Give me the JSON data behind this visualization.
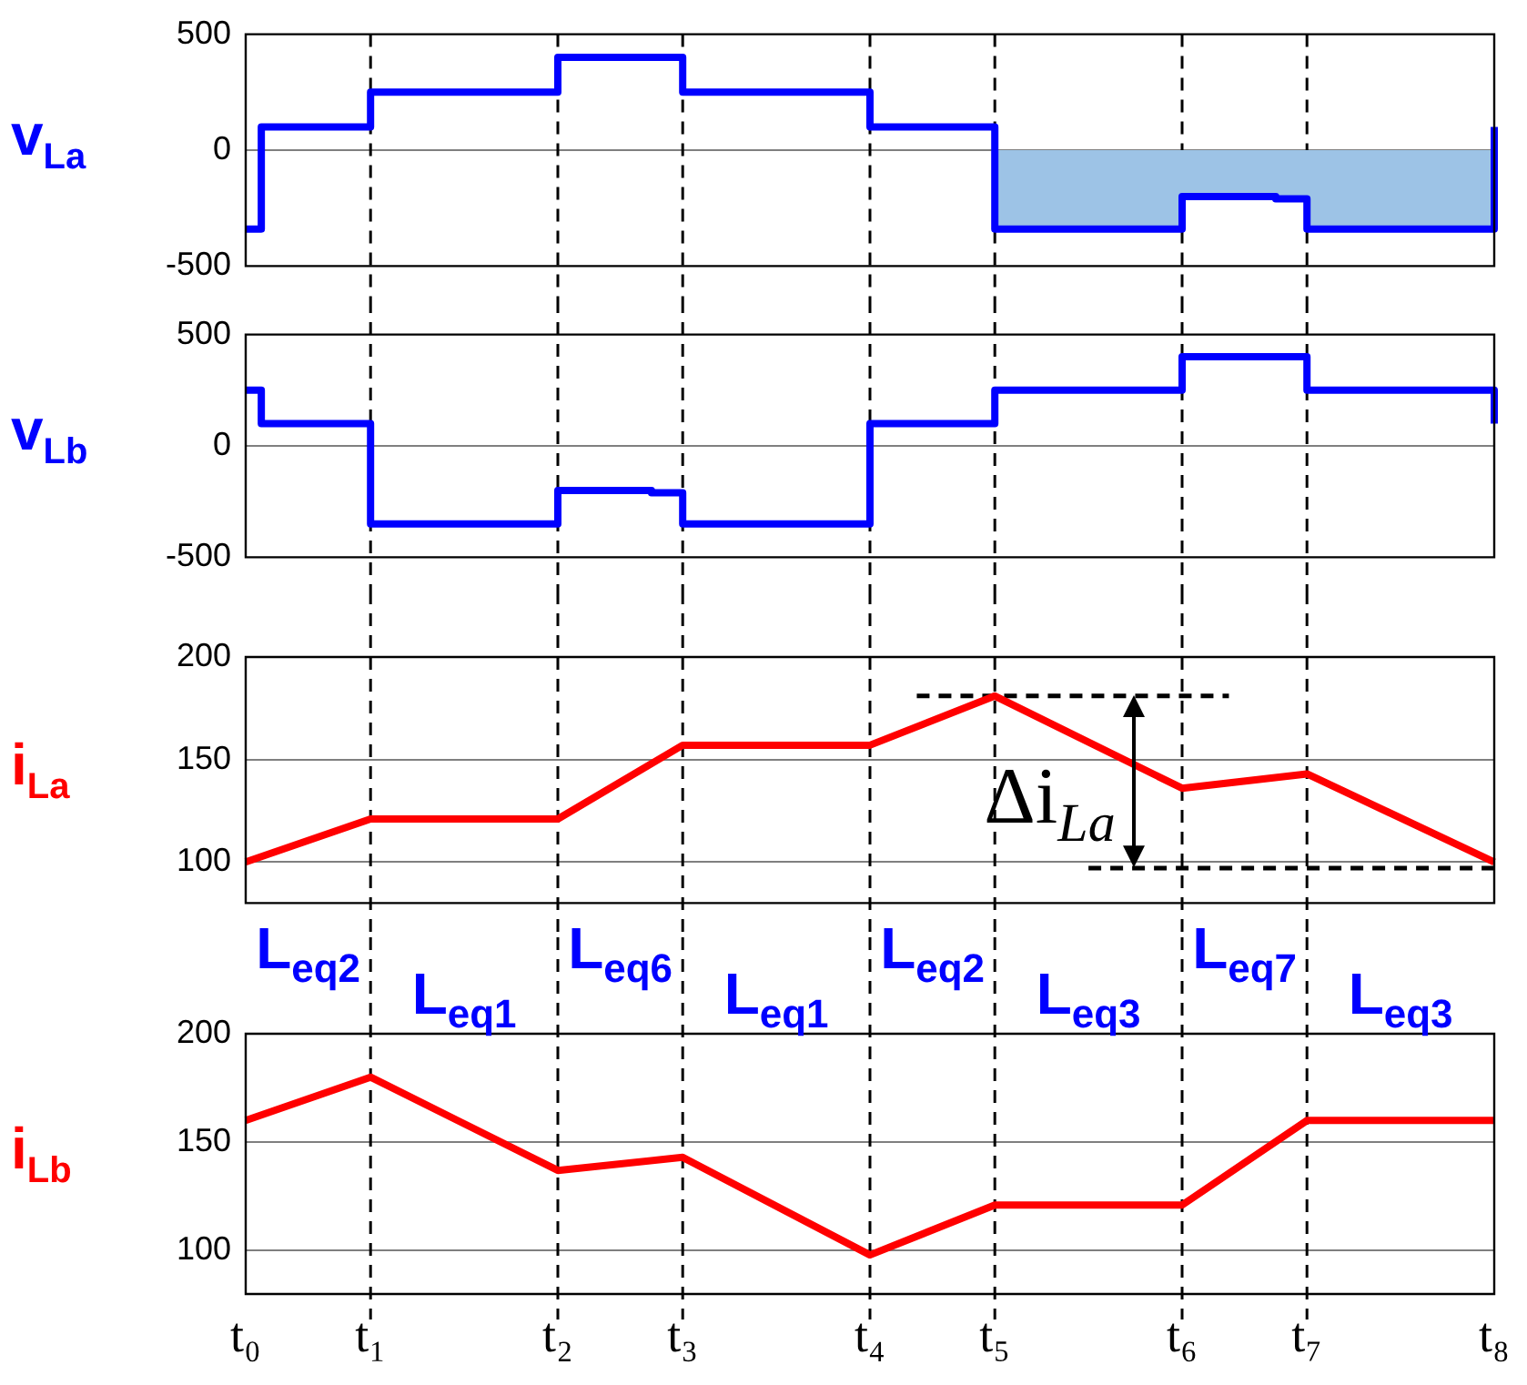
{
  "chart_data": [
    {
      "type": "step",
      "ylabel": "v$_{La}$",
      "categories": [
        "t₀",
        null,
        null,
        null,
        null,
        null,
        null,
        null,
        "t₁",
        null,
        null,
        null,
        null,
        null,
        null,
        null,
        null,
        null,
        null,
        null,
        "t₂",
        null,
        null,
        null,
        null,
        null,
        null,
        null,
        "t₃",
        null,
        null,
        null,
        null,
        null,
        null,
        null,
        null,
        null,
        null,
        null,
        "t₄",
        null,
        null,
        null,
        null,
        null,
        null,
        null,
        "t₅",
        null,
        null,
        null,
        null,
        null,
        null,
        null,
        null,
        null,
        null,
        null,
        "t₆",
        null,
        null,
        null,
        null,
        null,
        null,
        null,
        "t₇",
        null,
        null,
        null,
        null,
        null,
        null,
        null,
        null,
        null,
        null,
        null,
        "t₈"
      ],
      "ylim": [
        -500,
        500
      ],
      "yticks": [
        -500,
        0,
        500
      ],
      "tick_labels": "y",
      "marker": "none",
      "legend": false,
      "ref_lines": [
        {
          "axis": "y",
          "value": 0,
          "color": "#7f7f7f",
          "line_style": "solid"
        },
        {
          "axis": "x",
          "value": "t₁",
          "color": "#000000",
          "line_style": "dashed"
        },
        {
          "axis": "x",
          "value": "t₂",
          "color": "#000000",
          "line_style": "dashed"
        },
        {
          "axis": "x",
          "value": "t₃",
          "color": "#000000",
          "line_style": "dashed"
        },
        {
          "axis": "x",
          "value": "t₄",
          "color": "#000000",
          "line_style": "dashed"
        },
        {
          "axis": "x",
          "value": "t₅",
          "color": "#000000",
          "line_style": "dashed"
        },
        {
          "axis": "x",
          "value": "t₆",
          "color": "#000000",
          "line_style": "dashed"
        },
        {
          "axis": "x",
          "value": "t₇",
          "color": "#000000",
          "line_style": "dashed"
        }
      ],
      "series": [
        {
          "type": "area",
          "color": "#9dc3e6",
          "values": [
            null,
            null,
            null,
            null,
            null,
            null,
            null,
            null,
            null,
            null,
            null,
            null,
            null,
            null,
            null,
            null,
            null,
            null,
            null,
            null,
            null,
            null,
            null,
            null,
            null,
            null,
            null,
            null,
            null,
            null,
            null,
            null,
            null,
            null,
            null,
            null,
            null,
            null,
            null,
            null,
            null,
            null,
            null,
            null,
            null,
            null,
            null,
            null,
            -340,
            null,
            null,
            null,
            null,
            null,
            null,
            null,
            null,
            null,
            null,
            null,
            -200,
            null,
            null,
            null,
            null,
            null,
            -210,
            null,
            -340,
            null,
            null,
            null,
            null,
            null,
            null,
            null,
            null,
            null,
            null,
            null,
            -340
          ]
        },
        {
          "color": "#0000ff",
          "values": [
            -340,
            100,
            null,
            null,
            null,
            null,
            null,
            null,
            250,
            null,
            null,
            null,
            null,
            null,
            null,
            null,
            null,
            null,
            null,
            null,
            400,
            null,
            null,
            null,
            null,
            null,
            null,
            null,
            250,
            null,
            null,
            null,
            null,
            null,
            null,
            null,
            null,
            null,
            null,
            null,
            100,
            null,
            null,
            null,
            null,
            null,
            null,
            null,
            -340,
            null,
            null,
            null,
            null,
            null,
            null,
            null,
            null,
            null,
            null,
            null,
            -200,
            null,
            null,
            null,
            null,
            null,
            -210,
            null,
            -340,
            null,
            null,
            null,
            null,
            null,
            null,
            null,
            null,
            null,
            null,
            null,
            100
          ]
        }
      ]
    },
    {
      "type": "step",
      "ylabel": "v$_{Lb}$",
      "categories": [
        "t₀",
        null,
        null,
        null,
        null,
        null,
        null,
        null,
        "t₁",
        null,
        null,
        null,
        null,
        null,
        null,
        null,
        null,
        null,
        null,
        null,
        "t₂",
        null,
        null,
        null,
        null,
        null,
        null,
        null,
        "t₃",
        null,
        null,
        null,
        null,
        null,
        null,
        null,
        null,
        null,
        null,
        null,
        "t₄",
        null,
        null,
        null,
        null,
        null,
        null,
        null,
        "t₅",
        null,
        null,
        null,
        null,
        null,
        null,
        null,
        null,
        null,
        null,
        null,
        "t₆",
        null,
        null,
        null,
        null,
        null,
        null,
        null,
        "t₇",
        null,
        null,
        null,
        null,
        null,
        null,
        null,
        null,
        null,
        null,
        null,
        "t₈"
      ],
      "ylim": [
        -500,
        500
      ],
      "yticks": [
        -500,
        0,
        500
      ],
      "tick_labels": "y",
      "marker": "none",
      "legend": false,
      "ref_lines": [
        {
          "axis": "y",
          "value": 0,
          "color": "#7f7f7f",
          "line_style": "solid"
        },
        {
          "axis": "x",
          "value": "t₁",
          "color": "#000000",
          "line_style": "dashed"
        },
        {
          "axis": "x",
          "value": "t₂",
          "color": "#000000",
          "line_style": "dashed"
        },
        {
          "axis": "x",
          "value": "t₃",
          "color": "#000000",
          "line_style": "dashed"
        },
        {
          "axis": "x",
          "value": "t₄",
          "color": "#000000",
          "line_style": "dashed"
        },
        {
          "axis": "x",
          "value": "t₅",
          "color": "#000000",
          "line_style": "dashed"
        },
        {
          "axis": "x",
          "value": "t₆",
          "color": "#000000",
          "line_style": "dashed"
        },
        {
          "axis": "x",
          "value": "t₇",
          "color": "#000000",
          "line_style": "dashed"
        }
      ],
      "series": [
        {
          "color": "#0000ff",
          "values": [
            250,
            100,
            null,
            null,
            null,
            null,
            null,
            null,
            -350,
            null,
            null,
            null,
            null,
            null,
            null,
            null,
            null,
            null,
            null,
            null,
            -200,
            null,
            null,
            null,
            null,
            null,
            -210,
            null,
            -350,
            null,
            null,
            null,
            null,
            null,
            null,
            null,
            null,
            null,
            null,
            null,
            100,
            null,
            null,
            null,
            null,
            null,
            null,
            null,
            250,
            null,
            null,
            null,
            null,
            null,
            null,
            null,
            null,
            null,
            null,
            null,
            400,
            null,
            null,
            null,
            null,
            null,
            null,
            null,
            250,
            null,
            null,
            null,
            null,
            null,
            null,
            null,
            null,
            null,
            null,
            null,
            100
          ]
        }
      ]
    },
    {
      "type": "line",
      "ylabel": "i$_{La}$",
      "categories": [
        "t₀",
        null,
        null,
        null,
        null,
        null,
        null,
        null,
        "t₁",
        null,
        null,
        null,
        null,
        null,
        null,
        null,
        null,
        null,
        null,
        null,
        "t₂",
        null,
        null,
        null,
        null,
        null,
        null,
        null,
        "t₃",
        null,
        null,
        null,
        null,
        null,
        null,
        null,
        null,
        null,
        null,
        null,
        "t₄",
        null,
        null,
        null,
        null,
        null,
        null,
        null,
        "t₅",
        null,
        null,
        null,
        null,
        null,
        null,
        null,
        null,
        null,
        null,
        null,
        "t₆",
        null,
        null,
        null,
        null,
        null,
        null,
        null,
        "t₇",
        null,
        null,
        null,
        null,
        null,
        null,
        null,
        null,
        null,
        null,
        null,
        "t₈"
      ],
      "ylim": [
        80,
        200
      ],
      "yticks": [
        100,
        150,
        200
      ],
      "grid": "y",
      "tick_labels": "y",
      "marker": "none",
      "legend": false,
      "ref_lines": [
        {
          "axis": "x",
          "value": "t₁",
          "color": "#000000",
          "line_style": "dashed"
        },
        {
          "axis": "x",
          "value": "t₂",
          "color": "#000000",
          "line_style": "dashed"
        },
        {
          "axis": "x",
          "value": "t₃",
          "color": "#000000",
          "line_style": "dashed"
        },
        {
          "axis": "x",
          "value": "t₄",
          "color": "#000000",
          "line_style": "dashed"
        },
        {
          "axis": "x",
          "value": "t₅",
          "color": "#000000",
          "line_style": "dashed"
        },
        {
          "axis": "x",
          "value": "t₆",
          "color": "#000000",
          "line_style": "dashed"
        },
        {
          "axis": "x",
          "value": "t₇",
          "color": "#000000",
          "line_style": "dashed"
        }
      ],
      "annotations": [
        "Δi$_{La}$"
      ],
      "series": [
        {
          "color": "#ff0000",
          "values": [
            100,
            null,
            null,
            null,
            null,
            null,
            null,
            null,
            121,
            null,
            null,
            null,
            null,
            null,
            null,
            null,
            null,
            null,
            null,
            null,
            121,
            null,
            null,
            null,
            null,
            null,
            null,
            null,
            157,
            null,
            null,
            null,
            null,
            null,
            null,
            null,
            null,
            null,
            null,
            null,
            157,
            null,
            null,
            null,
            null,
            null,
            null,
            null,
            181,
            null,
            null,
            null,
            null,
            null,
            null,
            null,
            null,
            null,
            null,
            null,
            136,
            null,
            null,
            null,
            null,
            null,
            null,
            null,
            143,
            null,
            null,
            null,
            null,
            null,
            null,
            null,
            null,
            null,
            null,
            null,
            100
          ]
        },
        {
          "type": "line",
          "line_style": "dashed",
          "color": "#000000",
          "values": [
            null,
            null,
            null,
            null,
            null,
            null,
            null,
            null,
            null,
            null,
            null,
            null,
            null,
            null,
            null,
            null,
            null,
            null,
            null,
            null,
            null,
            null,
            null,
            null,
            null,
            null,
            null,
            null,
            null,
            null,
            null,
            null,
            null,
            null,
            null,
            null,
            null,
            null,
            null,
            null,
            null,
            null,
            null,
            181,
            null,
            null,
            null,
            null,
            null,
            null,
            null,
            null,
            null,
            null,
            null,
            null,
            null,
            null,
            null,
            null,
            null,
            null,
            null,
            181,
            null,
            null,
            null,
            null,
            null,
            null,
            null,
            null,
            null,
            null,
            null,
            null,
            null,
            null,
            null,
            null,
            null
          ]
        },
        {
          "type": "line",
          "line_style": "dashed",
          "color": "#000000",
          "values": [
            null,
            null,
            null,
            null,
            null,
            null,
            null,
            null,
            null,
            null,
            null,
            null,
            null,
            null,
            null,
            null,
            null,
            null,
            null,
            null,
            null,
            null,
            null,
            null,
            null,
            null,
            null,
            null,
            null,
            null,
            null,
            null,
            null,
            null,
            null,
            null,
            null,
            null,
            null,
            null,
            null,
            null,
            null,
            null,
            null,
            null,
            null,
            null,
            null,
            null,
            null,
            null,
            null,
            null,
            97,
            null,
            null,
            null,
            null,
            null,
            null,
            null,
            null,
            null,
            null,
            null,
            null,
            null,
            null,
            null,
            null,
            null,
            null,
            null,
            null,
            null,
            null,
            null,
            null,
            null,
            97
          ]
        }
      ]
    },
    {
      "type": "line",
      "ylabel": "i$_{Lb}$",
      "categories": [
        "t₀",
        null,
        null,
        null,
        null,
        null,
        null,
        null,
        "t₁",
        null,
        null,
        null,
        null,
        null,
        null,
        null,
        null,
        null,
        null,
        null,
        "t₂",
        null,
        null,
        null,
        null,
        null,
        null,
        null,
        "t₃",
        null,
        null,
        null,
        null,
        null,
        null,
        null,
        null,
        null,
        null,
        null,
        "t₄",
        null,
        null,
        null,
        null,
        null,
        null,
        null,
        "t₅",
        null,
        null,
        null,
        null,
        null,
        null,
        null,
        null,
        null,
        null,
        null,
        "t₆",
        null,
        null,
        null,
        null,
        null,
        null,
        null,
        "t₇",
        null,
        null,
        null,
        null,
        null,
        null,
        null,
        null,
        null,
        null,
        null,
        "t₈"
      ],
      "ylim": [
        80,
        200
      ],
      "yticks": [
        100,
        150,
        200
      ],
      "grid": "y",
      "marker": "none",
      "legend": false,
      "ref_lines": [
        {
          "axis": "x",
          "value": "t₁",
          "color": "#000000",
          "line_style": "dashed"
        },
        {
          "axis": "x",
          "value": "t₂",
          "color": "#000000",
          "line_style": "dashed"
        },
        {
          "axis": "x",
          "value": "t₃",
          "color": "#000000",
          "line_style": "dashed"
        },
        {
          "axis": "x",
          "value": "t₄",
          "color": "#000000",
          "line_style": "dashed"
        },
        {
          "axis": "x",
          "value": "t₅",
          "color": "#000000",
          "line_style": "dashed"
        },
        {
          "axis": "x",
          "value": "t₆",
          "color": "#000000",
          "line_style": "dashed"
        },
        {
          "axis": "x",
          "value": "t₇",
          "color": "#000000",
          "line_style": "dashed"
        }
      ],
      "annotations": [
        "L$_{eq2}$",
        "L$_{eq1}$",
        "L$_{eq6}$",
        "L$_{eq1}$",
        "L$_{eq2}$",
        "L$_{eq3}$",
        "L$_{eq7}$",
        "L$_{eq3}$"
      ],
      "series": [
        {
          "color": "#ff0000",
          "values": [
            160,
            null,
            null,
            null,
            null,
            null,
            null,
            null,
            180,
            null,
            null,
            null,
            null,
            null,
            null,
            null,
            null,
            null,
            null,
            null,
            137,
            null,
            null,
            null,
            null,
            null,
            null,
            null,
            143,
            null,
            null,
            null,
            null,
            null,
            null,
            null,
            null,
            null,
            null,
            null,
            98,
            null,
            null,
            null,
            null,
            null,
            null,
            null,
            121,
            null,
            null,
            null,
            null,
            null,
            null,
            null,
            null,
            null,
            null,
            null,
            121,
            null,
            null,
            null,
            null,
            null,
            null,
            null,
            160,
            null,
            null,
            null,
            null,
            null,
            null,
            null,
            null,
            null,
            null,
            null,
            160
          ]
        }
      ]
    }
  ]
}
